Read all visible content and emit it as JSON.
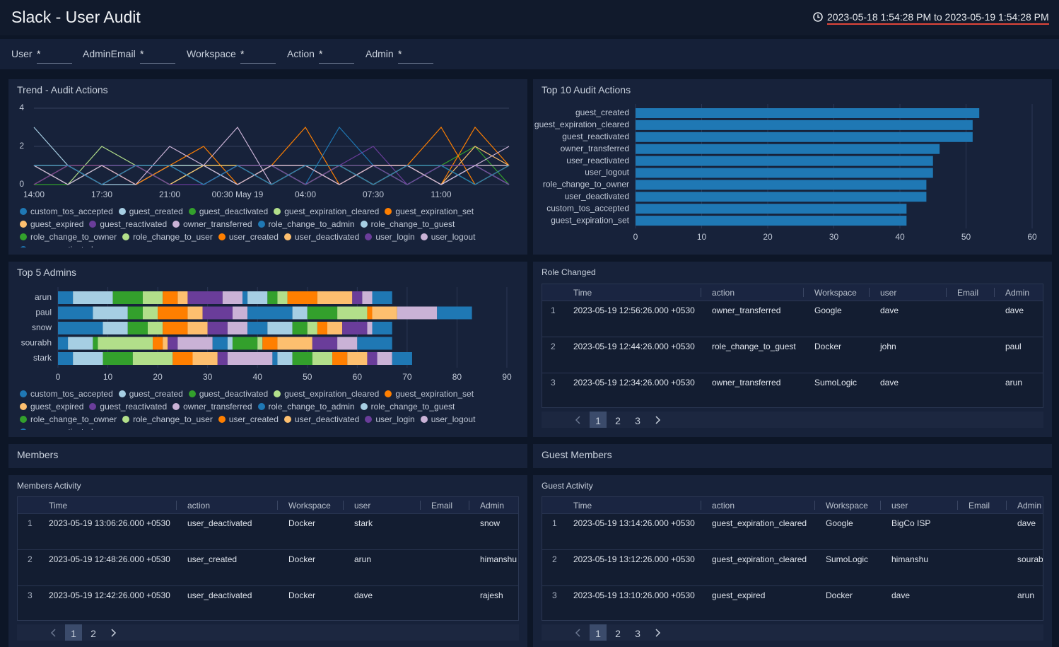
{
  "header": {
    "title": "Slack - User Audit",
    "time_range": "2023-05-18 1:54:28 PM to 2023-05-19 1:54:28 PM"
  },
  "filters": [
    {
      "label": "User",
      "value": "*"
    },
    {
      "label": "AdminEmail",
      "value": "*"
    },
    {
      "label": "Workspace",
      "value": "*"
    },
    {
      "label": "Action",
      "value": "*"
    },
    {
      "label": "Admin",
      "value": "*"
    }
  ],
  "sections": [
    "Members",
    "Guest Members"
  ],
  "chart_data": [
    {
      "type": "line",
      "title": "Trend - Audit Actions",
      "categories": [
        "14:00",
        null,
        "17:30",
        null,
        "21:00",
        null,
        "00:30 May 19",
        null,
        "04:00",
        null,
        "07:30",
        null,
        "11:00",
        null,
        null
      ],
      "ylim": [
        0,
        4
      ],
      "yticks": [
        0,
        2,
        4
      ],
      "grid": true,
      "series": [
        {
          "name": "custom_tos_accepted",
          "color": "#1f78b4",
          "values": [
            1,
            0,
            1,
            1,
            0,
            1,
            0,
            1,
            1,
            0,
            1,
            0,
            1,
            1,
            0
          ]
        },
        {
          "name": "guest_created",
          "color": "#a6cee3",
          "values": [
            3,
            1,
            0,
            1,
            1,
            0,
            1,
            1,
            0,
            1,
            0,
            1,
            1,
            0,
            1
          ]
        },
        {
          "name": "guest_deactivated",
          "color": "#33a02c",
          "values": [
            0,
            1,
            1,
            0,
            1,
            1,
            0,
            1,
            0,
            1,
            1,
            0,
            1,
            2,
            0
          ]
        },
        {
          "name": "guest_expiration_cleared",
          "color": "#b2df8a",
          "values": [
            1,
            1,
            0,
            1,
            0,
            1,
            1,
            0,
            1,
            1,
            0,
            1,
            0,
            1,
            1
          ]
        },
        {
          "name": "guest_expiration_set",
          "color": "#ff7f00",
          "values": [
            0,
            1,
            0,
            1,
            1,
            0,
            1,
            1,
            3,
            0,
            1,
            1,
            0,
            3,
            1
          ]
        },
        {
          "name": "guest_expired",
          "color": "#fdbf6f",
          "values": [
            1,
            0,
            1,
            0,
            1,
            1,
            0,
            1,
            0,
            1,
            0,
            1,
            1,
            0,
            1
          ]
        },
        {
          "name": "guest_reactivated",
          "color": "#6a3d9a",
          "values": [
            0,
            1,
            1,
            0,
            1,
            0,
            1,
            0,
            1,
            1,
            2,
            0,
            1,
            1,
            0
          ]
        },
        {
          "name": "owner_transferred",
          "color": "#cab2d6",
          "values": [
            1,
            0,
            1,
            1,
            0,
            1,
            3,
            0,
            1,
            0,
            1,
            1,
            0,
            1,
            1
          ]
        },
        {
          "name": "role_change_to_admin",
          "color": "#1f78b4",
          "values": [
            0,
            1,
            0,
            1,
            1,
            0,
            1,
            1,
            0,
            3,
            1,
            0,
            1,
            0,
            1
          ]
        },
        {
          "name": "role_change_to_guest",
          "color": "#a6cee3",
          "values": [
            1,
            1,
            0,
            0,
            1,
            1,
            0,
            1,
            1,
            0,
            1,
            1,
            0,
            1,
            0
          ]
        },
        {
          "name": "role_change_to_owner",
          "color": "#33a02c",
          "values": [
            0,
            0,
            1,
            1,
            0,
            1,
            1,
            0,
            1,
            1,
            0,
            1,
            1,
            0,
            1
          ]
        },
        {
          "name": "role_change_to_user",
          "color": "#b2df8a",
          "values": [
            1,
            0,
            2,
            1,
            1,
            0,
            1,
            1,
            0,
            1,
            1,
            0,
            1,
            1,
            0
          ]
        },
        {
          "name": "user_created",
          "color": "#ff7f00",
          "values": [
            0,
            1,
            1,
            0,
            1,
            2,
            0,
            1,
            1,
            0,
            1,
            1,
            3,
            0,
            1
          ]
        },
        {
          "name": "user_deactivated",
          "color": "#fdbf6f",
          "values": [
            1,
            1,
            0,
            1,
            0,
            1,
            1,
            0,
            1,
            1,
            0,
            1,
            0,
            2,
            1
          ]
        },
        {
          "name": "user_login",
          "color": "#6a3d9a",
          "values": [
            0,
            1,
            1,
            1,
            0,
            0,
            1,
            1,
            0,
            1,
            1,
            0,
            1,
            1,
            0
          ]
        },
        {
          "name": "user_logout",
          "color": "#cab2d6",
          "values": [
            1,
            0,
            1,
            0,
            2,
            1,
            0,
            1,
            1,
            0,
            1,
            1,
            0,
            1,
            2
          ]
        },
        {
          "name": "user_reactivated",
          "color": "#1f78b4",
          "values": [
            1,
            1,
            0,
            1,
            1,
            0,
            1,
            0,
            1,
            1,
            0,
            1,
            1,
            0,
            1
          ]
        }
      ]
    },
    {
      "type": "bar",
      "orientation": "horizontal",
      "title": "Top 10 Audit Actions",
      "color": "#1f78b4",
      "categories": [
        "guest_created",
        "guest_expiration_cleared",
        "guest_reactivated",
        "owner_transferred",
        "user_reactivated",
        "user_logout",
        "role_change_to_owner",
        "user_deactivated",
        "custom_tos_accepted",
        "guest_expiration_set"
      ],
      "values": [
        52,
        51,
        51,
        46,
        45,
        45,
        44,
        44,
        41,
        41
      ],
      "xlim": [
        0,
        60
      ],
      "xticks": [
        0,
        10,
        20,
        30,
        40,
        50,
        60
      ],
      "grid": true
    },
    {
      "type": "bar",
      "orientation": "horizontal",
      "stacked": true,
      "title": "Top 5 Admins",
      "categories": [
        "arun",
        "paul",
        "snow",
        "sourabh",
        "stark"
      ],
      "xlim": [
        0,
        90
      ],
      "xticks": [
        0,
        10,
        20,
        30,
        40,
        50,
        60,
        70,
        80,
        90
      ],
      "grid": true,
      "series": [
        {
          "name": "custom_tos_accepted",
          "color": "#1f78b4",
          "values": [
            3,
            7,
            9,
            2,
            3
          ]
        },
        {
          "name": "guest_created",
          "color": "#a6cee3",
          "values": [
            8,
            7,
            5,
            5,
            6
          ]
        },
        {
          "name": "guest_deactivated",
          "color": "#33a02c",
          "values": [
            6,
            3,
            4,
            1,
            6
          ]
        },
        {
          "name": "guest_expiration_cleared",
          "color": "#b2df8a",
          "values": [
            4,
            3,
            3,
            11,
            8
          ]
        },
        {
          "name": "guest_expiration_set",
          "color": "#ff7f00",
          "values": [
            3,
            6,
            5,
            2,
            4
          ]
        },
        {
          "name": "guest_expired",
          "color": "#fdbf6f",
          "values": [
            2,
            3,
            4,
            1,
            5
          ]
        },
        {
          "name": "guest_reactivated",
          "color": "#6a3d9a",
          "values": [
            7,
            6,
            4,
            2,
            2
          ]
        },
        {
          "name": "owner_transferred",
          "color": "#cab2d6",
          "values": [
            4,
            3,
            4,
            7,
            9
          ]
        },
        {
          "name": "role_change_to_admin",
          "color": "#1f78b4",
          "values": [
            1,
            9,
            4,
            3,
            1
          ]
        },
        {
          "name": "role_change_to_guest",
          "color": "#a6cee3",
          "values": [
            4,
            3,
            5,
            1,
            3
          ]
        },
        {
          "name": "role_change_to_owner",
          "color": "#33a02c",
          "values": [
            2,
            6,
            3,
            5,
            4
          ]
        },
        {
          "name": "role_change_to_user",
          "color": "#b2df8a",
          "values": [
            2,
            6,
            2,
            1,
            4
          ]
        },
        {
          "name": "user_created",
          "color": "#ff7f00",
          "values": [
            6,
            1,
            2,
            3,
            3
          ]
        },
        {
          "name": "user_deactivated",
          "color": "#fdbf6f",
          "values": [
            7,
            5,
            3,
            7,
            4
          ]
        },
        {
          "name": "user_login",
          "color": "#6a3d9a",
          "values": [
            2,
            0,
            5,
            5,
            2
          ]
        },
        {
          "name": "user_logout",
          "color": "#cab2d6",
          "values": [
            2,
            8,
            1,
            4,
            3
          ]
        },
        {
          "name": "user_reactivated",
          "color": "#1f78b4",
          "values": [
            4,
            7,
            4,
            7,
            4
          ]
        }
      ]
    }
  ],
  "tables": [
    {
      "title": "Role Changed",
      "columns": [
        "Time",
        "action",
        "Workspace",
        "user",
        "Email",
        "Admin"
      ],
      "rows": [
        [
          1,
          "2023-05-19 12:56:26.000 +0530",
          "owner_transferred",
          "Google",
          "dave",
          null,
          "dave"
        ],
        [
          2,
          "2023-05-19 12:44:26.000 +0530",
          "role_change_to_guest",
          "Docker",
          "john",
          null,
          "paul"
        ],
        [
          3,
          "2023-05-19 12:34:26.000 +0530",
          "owner_transferred",
          "SumoLogic",
          "dave",
          null,
          "arun"
        ]
      ],
      "pages": [
        1,
        2,
        3
      ]
    },
    {
      "title": "Members Activity",
      "columns": [
        "Time",
        "action",
        "Workspace",
        "user",
        "Email",
        "Admin"
      ],
      "rows": [
        [
          1,
          "2023-05-19 13:06:26.000 +0530",
          "user_deactivated",
          "Docker",
          "stark",
          null,
          "snow"
        ],
        [
          2,
          "2023-05-19 12:48:26.000 +0530",
          "user_created",
          "Docker",
          "arun",
          null,
          "himanshu"
        ],
        [
          3,
          "2023-05-19 12:42:26.000 +0530",
          "user_deactivated",
          "Docker",
          "dave",
          null,
          "rajesh"
        ]
      ],
      "pages": [
        1,
        2
      ]
    },
    {
      "title": "Guest Activity",
      "columns": [
        "Time",
        "action",
        "Workspace",
        "user",
        "Email",
        "Admin"
      ],
      "rows": [
        [
          1,
          "2023-05-19 13:14:26.000 +0530",
          "guest_expiration_cleared",
          "Google",
          "BigCo ISP",
          null,
          "dave"
        ],
        [
          2,
          "2023-05-19 13:12:26.000 +0530",
          "guest_expiration_cleared",
          "SumoLogic",
          "himanshu",
          null,
          "sourabh"
        ],
        [
          3,
          "2023-05-19 13:10:26.000 +0530",
          "guest_expired",
          "Docker",
          "dave",
          null,
          "arun"
        ]
      ],
      "pages": [
        1,
        2,
        3
      ]
    }
  ]
}
